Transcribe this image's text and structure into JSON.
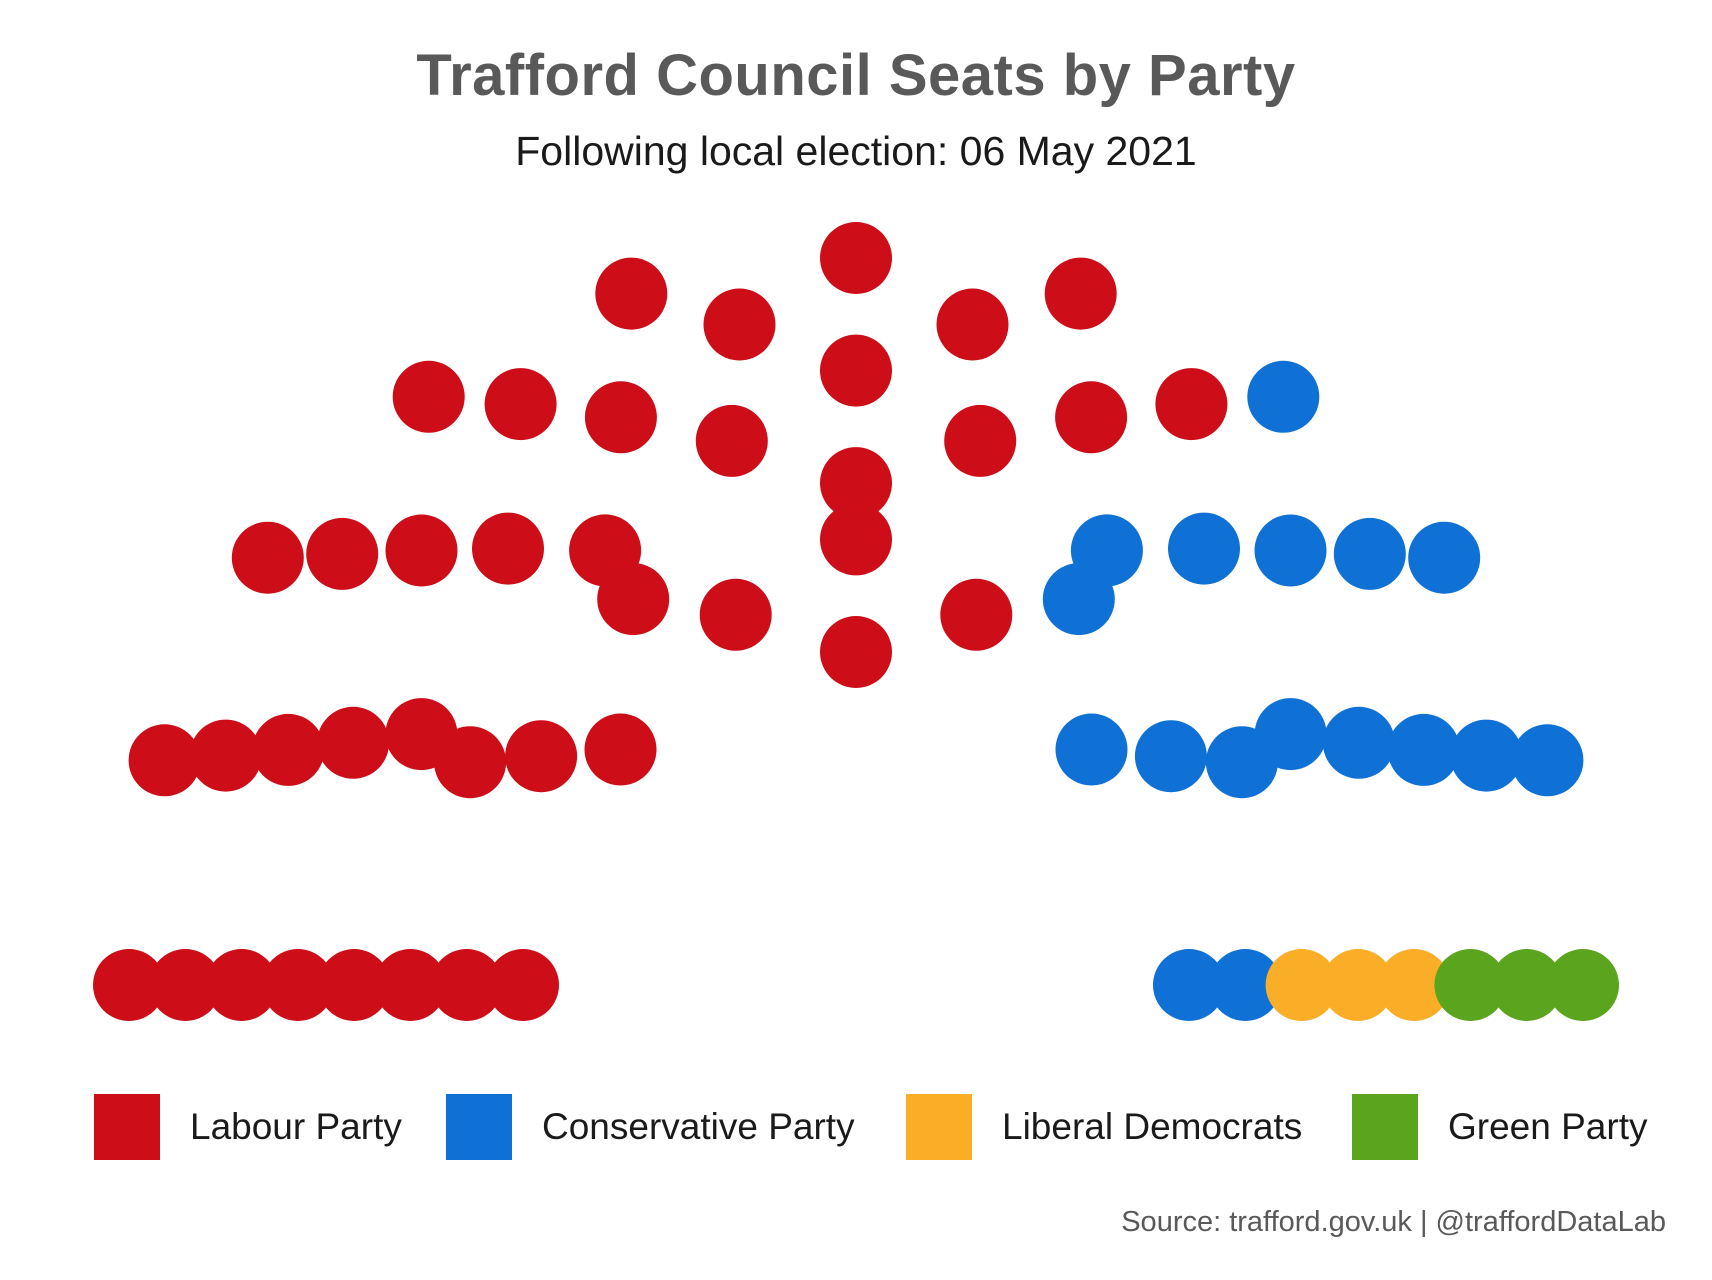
{
  "chart_data": {
    "type": "parliament",
    "title": "Trafford Council Seats by Party",
    "subtitle": "Following local election: 06 May 2021",
    "total_seats": 63,
    "series": [
      {
        "name": "Labour Party",
        "seats": 40,
        "color": "#CD0D17"
      },
      {
        "name": "Conservative Party",
        "seats": 17,
        "color": "#0F70D5"
      },
      {
        "name": "Liberal Democrats",
        "seats": 3,
        "color": "#FAAD27"
      },
      {
        "name": "Green Party",
        "seats": 3,
        "color": "#5BA41E"
      }
    ],
    "legend_position": "bottom",
    "caption": "Source: trafford.gov.uk | @traffordDataLab"
  }
}
